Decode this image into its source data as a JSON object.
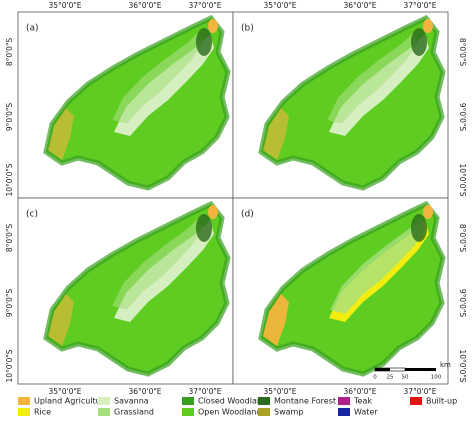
{
  "panels": [
    {
      "label": "(a)"
    },
    {
      "label": "(b)"
    },
    {
      "label": "(c)"
    },
    {
      "label": "(d)"
    }
  ],
  "axes": {
    "longitude": [
      "35°0'0\"E",
      "36°0'0\"E",
      "37°0'0\"E"
    ],
    "latitude": [
      "8°0'0\"S",
      "9°0'0\"S",
      "10°0'0\"S"
    ]
  },
  "scale_bar": {
    "ticks": [
      "0",
      "25",
      "50",
      "100"
    ],
    "unit": "km"
  },
  "legend": [
    {
      "label": "Upland Agriculture",
      "color": "#f2b43c"
    },
    {
      "label": "Rice",
      "color": "#f4ee10"
    },
    {
      "label": "Savanna",
      "color": "#d6efc0"
    },
    {
      "label": "Grassland",
      "color": "#a6e07e"
    },
    {
      "label": "Closed Woodland",
      "color": "#38a020"
    },
    {
      "label": "Open Woodland",
      "color": "#5fcc22"
    },
    {
      "label": "Montane Forest",
      "color": "#2a6a1c"
    },
    {
      "label": "Swamp",
      "color": "#a9a224"
    },
    {
      "label": "Teak",
      "color": "#b0208a"
    },
    {
      "label": "Water",
      "color": "#1626a0"
    },
    {
      "label": "Built-up",
      "color": "#e01414"
    }
  ]
}
